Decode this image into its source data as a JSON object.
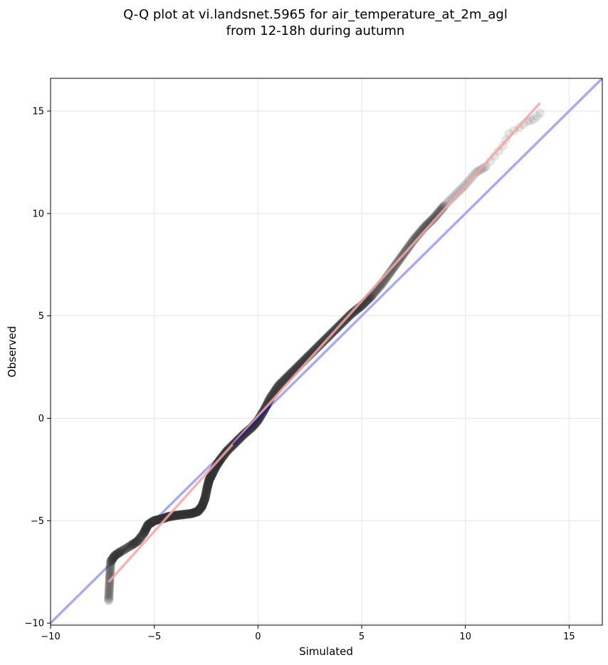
{
  "chart_data": {
    "type": "scatter",
    "title": [
      "Q-Q plot at vi.landsnet.5965 for air_temperature_at_2m_agl",
      "from 12-18h during autumn"
    ],
    "xlabel": "Simulated",
    "ylabel": "Observed",
    "xlim": [
      -10,
      16.6
    ],
    "ylim": [
      -10.1,
      16.6
    ],
    "xticks": [
      -10,
      -5,
      0,
      5,
      10,
      15
    ],
    "yticks": [
      -10,
      -5,
      0,
      5,
      10,
      15
    ],
    "xtick_labels": [
      "−10",
      "−5",
      "0",
      "5",
      "10",
      "15"
    ],
    "ytick_labels": [
      "−10",
      "−5",
      "0",
      "5",
      "10",
      "15"
    ],
    "grid": true,
    "colors": {
      "points": "#333333",
      "identity_line": "#aaaaee",
      "fit_line": "#f4a6a6",
      "center_highlight": "#1a1aa0"
    },
    "identity_line": {
      "x": [
        -10,
        16.6
      ],
      "y": [
        -10,
        16.6
      ]
    },
    "fit_line": {
      "x": [
        -7.2,
        13.6
      ],
      "y": [
        -8.0,
        15.4
      ]
    },
    "quantile_curve": [
      [
        -7.2,
        -8.9
      ],
      [
        -7.15,
        -7.9
      ],
      [
        -7.1,
        -7.0
      ],
      [
        -6.9,
        -6.7
      ],
      [
        -6.6,
        -6.5
      ],
      [
        -6.1,
        -6.2
      ],
      [
        -5.8,
        -6.0
      ],
      [
        -5.5,
        -5.6
      ],
      [
        -5.3,
        -5.2
      ],
      [
        -5.0,
        -5.0
      ],
      [
        -4.6,
        -4.9
      ],
      [
        -4.3,
        -4.8
      ],
      [
        -4.0,
        -4.75
      ],
      [
        -3.6,
        -4.7
      ],
      [
        -3.2,
        -4.65
      ],
      [
        -2.9,
        -4.55
      ],
      [
        -2.7,
        -4.3
      ],
      [
        -2.55,
        -3.9
      ],
      [
        -2.45,
        -3.4
      ],
      [
        -2.35,
        -3.0
      ],
      [
        -2.2,
        -2.7
      ],
      [
        -2.0,
        -2.3
      ],
      [
        -1.8,
        -2.0
      ],
      [
        -1.5,
        -1.6
      ],
      [
        -1.1,
        -1.2
      ],
      [
        -0.7,
        -0.8
      ],
      [
        -0.3,
        -0.45
      ],
      [
        0.0,
        -0.1
      ],
      [
        0.3,
        0.4
      ],
      [
        0.6,
        1.0
      ],
      [
        1.0,
        1.6
      ],
      [
        1.5,
        2.1
      ],
      [
        2.0,
        2.6
      ],
      [
        2.5,
        3.1
      ],
      [
        3.0,
        3.6
      ],
      [
        3.5,
        4.1
      ],
      [
        4.0,
        4.6
      ],
      [
        4.5,
        5.1
      ],
      [
        5.0,
        5.5
      ],
      [
        5.5,
        6.0
      ],
      [
        6.0,
        6.6
      ],
      [
        6.5,
        7.3
      ],
      [
        7.0,
        8.0
      ],
      [
        7.5,
        8.7
      ],
      [
        8.0,
        9.3
      ],
      [
        8.5,
        9.8
      ],
      [
        9.0,
        10.4
      ],
      [
        9.5,
        10.9
      ],
      [
        10.0,
        11.4
      ],
      [
        10.5,
        12.0
      ],
      [
        11.0,
        12.3
      ],
      [
        11.4,
        12.8
      ],
      [
        11.8,
        13.3
      ],
      [
        12.1,
        13.9
      ],
      [
        12.6,
        14.2
      ],
      [
        13.0,
        14.5
      ],
      [
        13.3,
        14.6
      ],
      [
        13.6,
        14.9
      ]
    ]
  }
}
